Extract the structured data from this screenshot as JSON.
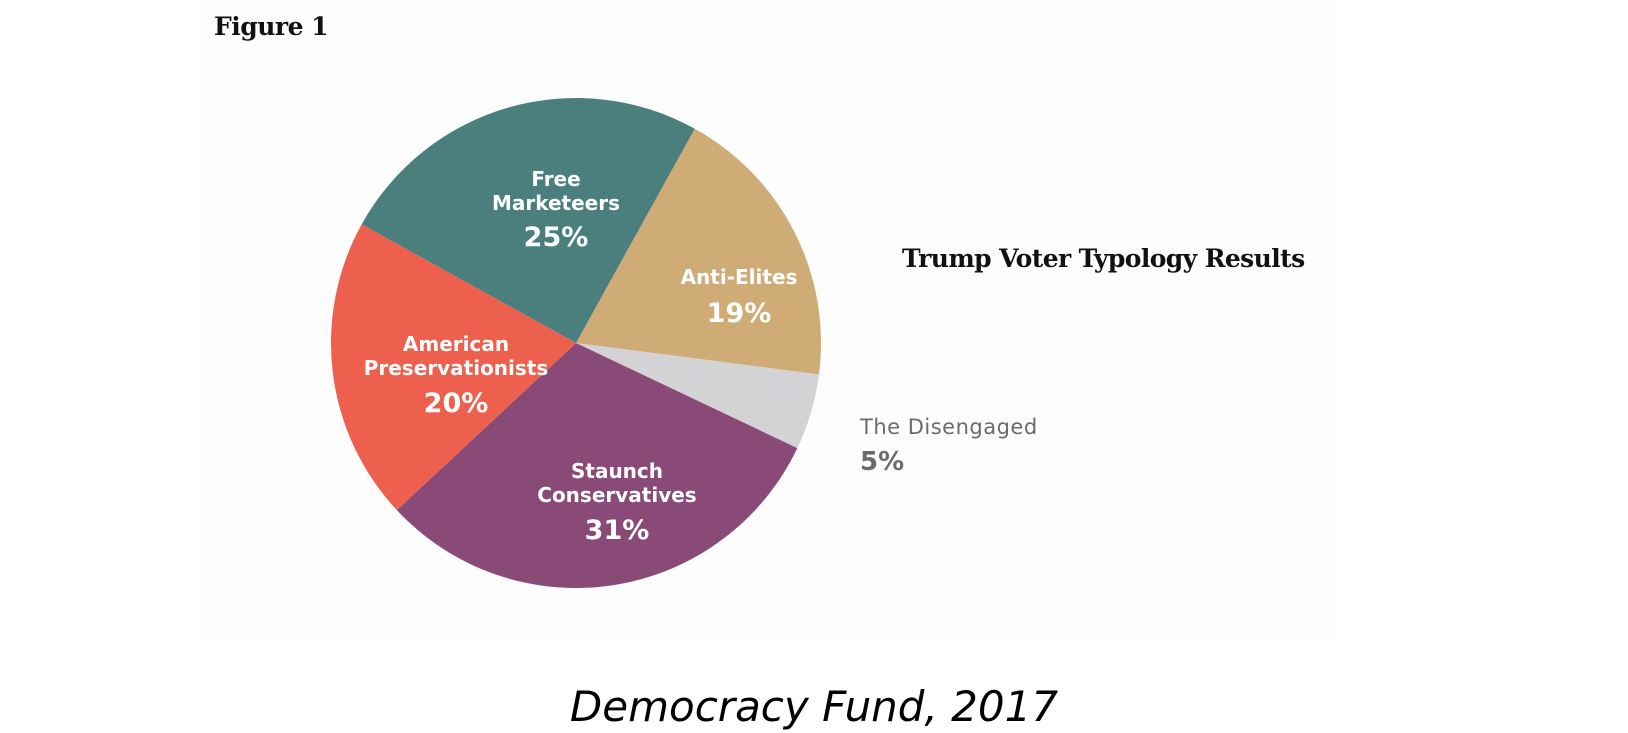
{
  "figure_label": "Figure 1",
  "source_caption": "Democracy Fund, 2017",
  "chart_data": {
    "type": "pie",
    "title": "Trump Voter Typology Results",
    "start_angle_deg": 29,
    "direction": "clockwise",
    "slices": [
      {
        "label": "Anti-Elites",
        "label_lines": [
          "Anti-Elites"
        ],
        "value": 19,
        "display": "19%",
        "color": "#cfac76"
      },
      {
        "label": "The Disengaged",
        "label_lines": [
          "The Disengaged"
        ],
        "value": 5,
        "display": "5%",
        "color": "#d3d2d4",
        "label_outside": true
      },
      {
        "label": "Staunch Conservatives",
        "label_lines": [
          "Staunch",
          "Conservatives"
        ],
        "value": 31,
        "display": "31%",
        "color": "#8a4a77"
      },
      {
        "label": "American Preservationists",
        "label_lines": [
          "American",
          "Preservationists"
        ],
        "value": 20,
        "display": "20%",
        "color": "#ec604d"
      },
      {
        "label": "Free Marketeers",
        "label_lines": [
          "Free",
          "Marketeers"
        ],
        "value": 25,
        "display": "25%",
        "color": "#4a7f7e"
      }
    ],
    "legend": "none (direct labels)"
  }
}
